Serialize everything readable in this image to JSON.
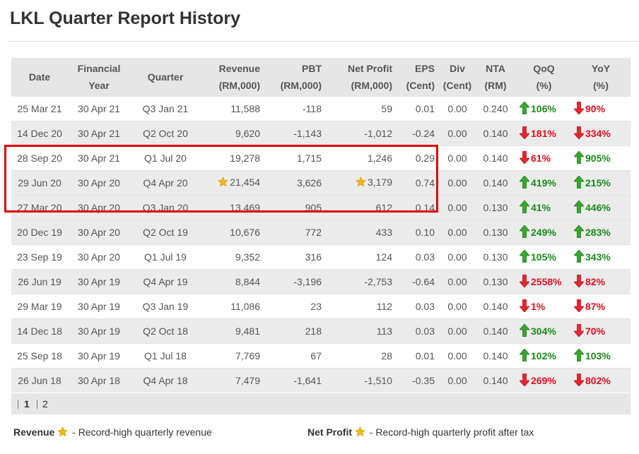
{
  "page": {
    "title": "LKL Quarter Report History"
  },
  "table": {
    "headers": {
      "date": [
        "Date"
      ],
      "financial_year": [
        "Financial",
        "Year"
      ],
      "quarter": [
        "Quarter"
      ],
      "revenue": [
        "Revenue",
        "(RM,000)"
      ],
      "pbt": [
        "PBT",
        "(RM,000)"
      ],
      "net_profit": [
        "Net Profit",
        "(RM,000)"
      ],
      "eps": [
        "EPS",
        "(Cent)"
      ],
      "div": [
        "Div",
        "(Cent)"
      ],
      "nta": [
        "NTA",
        "(RM)"
      ],
      "qoq": [
        "QoQ",
        "(%)"
      ],
      "yoy": [
        "YoY",
        "(%)"
      ]
    },
    "rows": [
      {
        "date": "25 Mar 21",
        "fy": "30 Apr 21",
        "quarter": "Q3 Jan 21",
        "revenue": "11,588",
        "pbt": "-118",
        "net_profit": "59",
        "eps": "0.01",
        "div": "0.00",
        "nta": "0.240",
        "qoq": "106%",
        "qoq_dir": "up",
        "yoy": "90%",
        "yoy_dir": "down",
        "rev_star": false,
        "np_star": false
      },
      {
        "date": "14 Dec 20",
        "fy": "30 Apr 21",
        "quarter": "Q2 Oct 20",
        "revenue": "9,620",
        "pbt": "-1,143",
        "net_profit": "-1,012",
        "eps": "-0.24",
        "div": "0.00",
        "nta": "0.140",
        "qoq": "181%",
        "qoq_dir": "down",
        "yoy": "334%",
        "yoy_dir": "down",
        "rev_star": false,
        "np_star": false
      },
      {
        "date": "28 Sep 20",
        "fy": "30 Apr 21",
        "quarter": "Q1 Jul 20",
        "revenue": "19,278",
        "pbt": "1,715",
        "net_profit": "1,246",
        "eps": "0.29",
        "div": "0.00",
        "nta": "0.140",
        "qoq": "61%",
        "qoq_dir": "down",
        "yoy": "905%",
        "yoy_dir": "up",
        "rev_star": false,
        "np_star": false
      },
      {
        "date": "29 Jun 20",
        "fy": "30 Apr 20",
        "quarter": "Q4 Apr 20",
        "revenue": "21,454",
        "pbt": "3,626",
        "net_profit": "3,179",
        "eps": "0.74",
        "div": "0.00",
        "nta": "0.140",
        "qoq": "419%",
        "qoq_dir": "up",
        "yoy": "215%",
        "yoy_dir": "up",
        "rev_star": true,
        "np_star": true
      },
      {
        "date": "27 Mar 20",
        "fy": "30 Apr 20",
        "quarter": "Q3 Jan 20",
        "revenue": "13,469",
        "pbt": "905",
        "net_profit": "612",
        "eps": "0.14",
        "div": "0.00",
        "nta": "0.130",
        "qoq": "41%",
        "qoq_dir": "up",
        "yoy": "446%",
        "yoy_dir": "up",
        "rev_star": false,
        "np_star": false
      },
      {
        "date": "20 Dec 19",
        "fy": "30 Apr 20",
        "quarter": "Q2 Oct 19",
        "revenue": "10,676",
        "pbt": "772",
        "net_profit": "433",
        "eps": "0.10",
        "div": "0.00",
        "nta": "0.130",
        "qoq": "249%",
        "qoq_dir": "up",
        "yoy": "283%",
        "yoy_dir": "up",
        "rev_star": false,
        "np_star": false
      },
      {
        "date": "23 Sep 19",
        "fy": "30 Apr 20",
        "quarter": "Q1 Jul 19",
        "revenue": "9,352",
        "pbt": "316",
        "net_profit": "124",
        "eps": "0.03",
        "div": "0.00",
        "nta": "0.130",
        "qoq": "105%",
        "qoq_dir": "up",
        "yoy": "343%",
        "yoy_dir": "up",
        "rev_star": false,
        "np_star": false
      },
      {
        "date": "26 Jun 19",
        "fy": "30 Apr 19",
        "quarter": "Q4 Apr 19",
        "revenue": "8,844",
        "pbt": "-3,196",
        "net_profit": "-2,753",
        "eps": "-0.64",
        "div": "0.00",
        "nta": "0.130",
        "qoq": "2558%",
        "qoq_dir": "down",
        "yoy": "82%",
        "yoy_dir": "down",
        "rev_star": false,
        "np_star": false
      },
      {
        "date": "29 Mar 19",
        "fy": "30 Apr 19",
        "quarter": "Q3 Jan 19",
        "revenue": "11,086",
        "pbt": "23",
        "net_profit": "112",
        "eps": "0.03",
        "div": "0.00",
        "nta": "0.140",
        "qoq": "1%",
        "qoq_dir": "down",
        "yoy": "87%",
        "yoy_dir": "down",
        "rev_star": false,
        "np_star": false
      },
      {
        "date": "14 Dec 18",
        "fy": "30 Apr 19",
        "quarter": "Q2 Oct 18",
        "revenue": "9,481",
        "pbt": "218",
        "net_profit": "113",
        "eps": "0.03",
        "div": "0.00",
        "nta": "0.140",
        "qoq": "304%",
        "qoq_dir": "up",
        "yoy": "70%",
        "yoy_dir": "down",
        "rev_star": false,
        "np_star": false
      },
      {
        "date": "25 Sep 18",
        "fy": "30 Apr 19",
        "quarter": "Q1 Jul 18",
        "revenue": "7,769",
        "pbt": "67",
        "net_profit": "28",
        "eps": "0.01",
        "div": "0.00",
        "nta": "0.140",
        "qoq": "102%",
        "qoq_dir": "up",
        "yoy": "103%",
        "yoy_dir": "up",
        "rev_star": false,
        "np_star": false
      },
      {
        "date": "26 Jun 18",
        "fy": "30 Apr 18",
        "quarter": "Q4 Apr 18",
        "revenue": "7,479",
        "pbt": "-1,641",
        "net_profit": "-1,510",
        "eps": "-0.35",
        "div": "0.00",
        "nta": "0.140",
        "qoq": "269%",
        "qoq_dir": "down",
        "yoy": "802%",
        "yoy_dir": "down",
        "rev_star": false,
        "np_star": false
      }
    ]
  },
  "pagination": {
    "pages": [
      "1",
      "2"
    ],
    "current": "1"
  },
  "legend": {
    "revenue_label": "Revenue",
    "revenue_desc": "- Record-high quarterly revenue",
    "net_profit_label": "Net Profit",
    "net_profit_desc": "- Record-high quarterly profit after tax"
  },
  "colors": {
    "up": "#1a8a1a",
    "down": "#e0101e",
    "highlight_border": "#e00000",
    "star": "#f5b800"
  },
  "icons": {
    "up": "arrow-up-icon",
    "down": "arrow-down-icon",
    "record": "star-icon"
  }
}
